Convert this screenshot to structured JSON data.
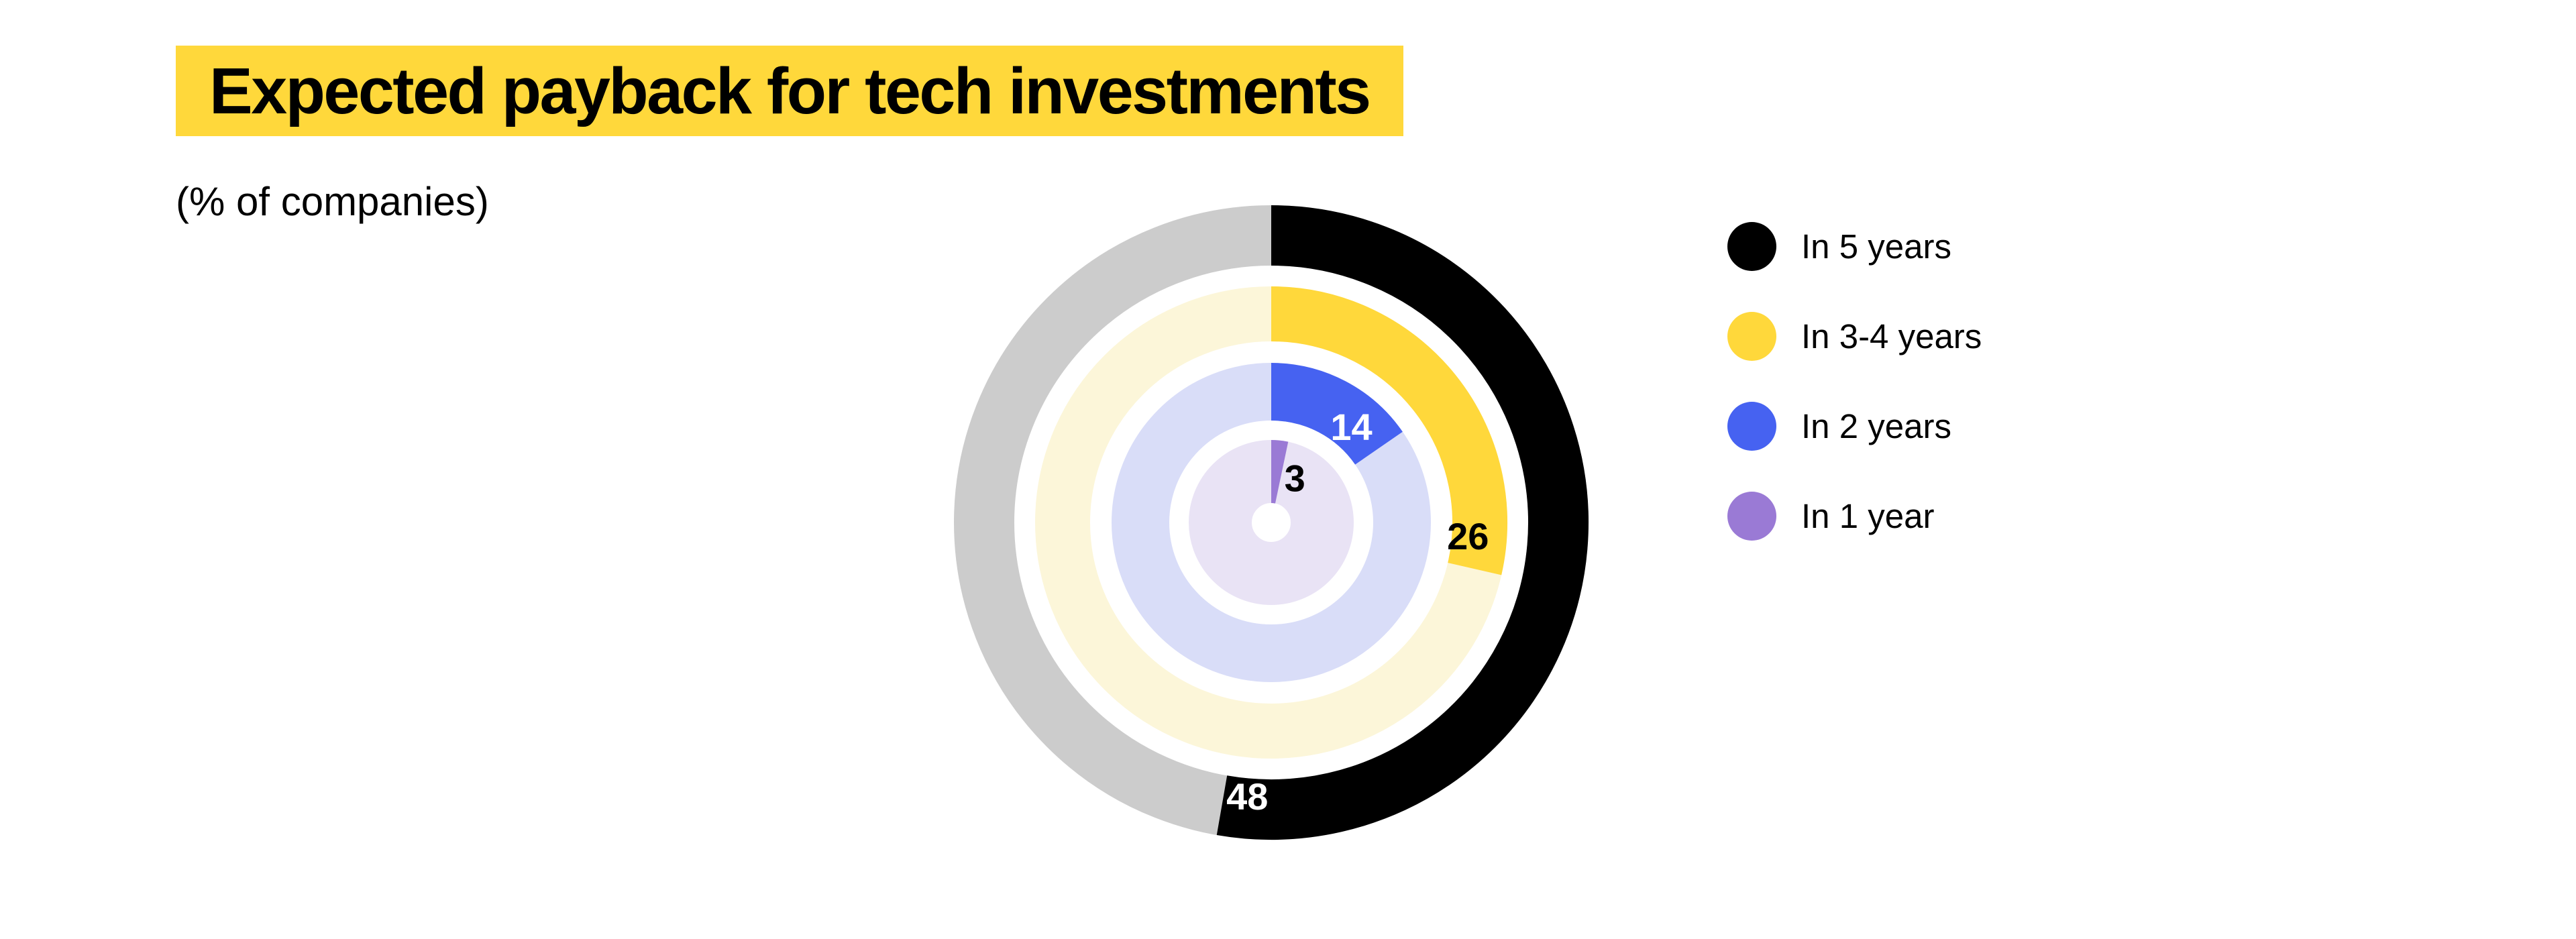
{
  "header": {
    "title": "Expected payback for tech investments",
    "subtitle": "(% of companies)"
  },
  "colors": {
    "accent_yellow": "#FFD83B",
    "background": "#FFFFFF",
    "text": "#000000"
  },
  "chart_data": {
    "type": "pie",
    "variant": "concentric-donut-rings",
    "title": "Expected payback for tech investments",
    "subtitle": "(% of companies)",
    "unit": "% of companies",
    "direction": "clockwise",
    "start_angle_deg": 0,
    "arc_normalization_total": 91,
    "legend_position": "right",
    "series": [
      {
        "name": "In 5 years",
        "value": 48,
        "color": "#000000",
        "track_color": "#CCCCCC",
        "label_color": "#FFFFFF"
      },
      {
        "name": "In 3-4 years",
        "value": 26,
        "color": "#FFD83B",
        "track_color": "#FCF6D9",
        "label_color": "#000000"
      },
      {
        "name": "In 2 years",
        "value": 14,
        "color": "#4662F1",
        "track_color": "#D9DDF8",
        "label_color": "#FFFFFF"
      },
      {
        "name": "In 1 year",
        "value": 3,
        "color": "#9A7AD5",
        "track_color": "#E9E3F5",
        "label_color": "#000000"
      }
    ],
    "layout_hints": {
      "center_x": 1895,
      "center_y": 779,
      "ring_mid_radius": [
        428,
        311,
        195,
        76
      ],
      "ring_thickness": [
        90,
        82,
        86,
        94
      ],
      "inner_hole_radius": 29,
      "value_labels": [
        {
          "angle_deg": 185,
          "radius": 410
        },
        {
          "angle_deg": 94,
          "radius": 294
        },
        {
          "angle_deg": 40,
          "radius": 186
        },
        {
          "angle_deg": 28,
          "radius": 75
        }
      ]
    }
  }
}
